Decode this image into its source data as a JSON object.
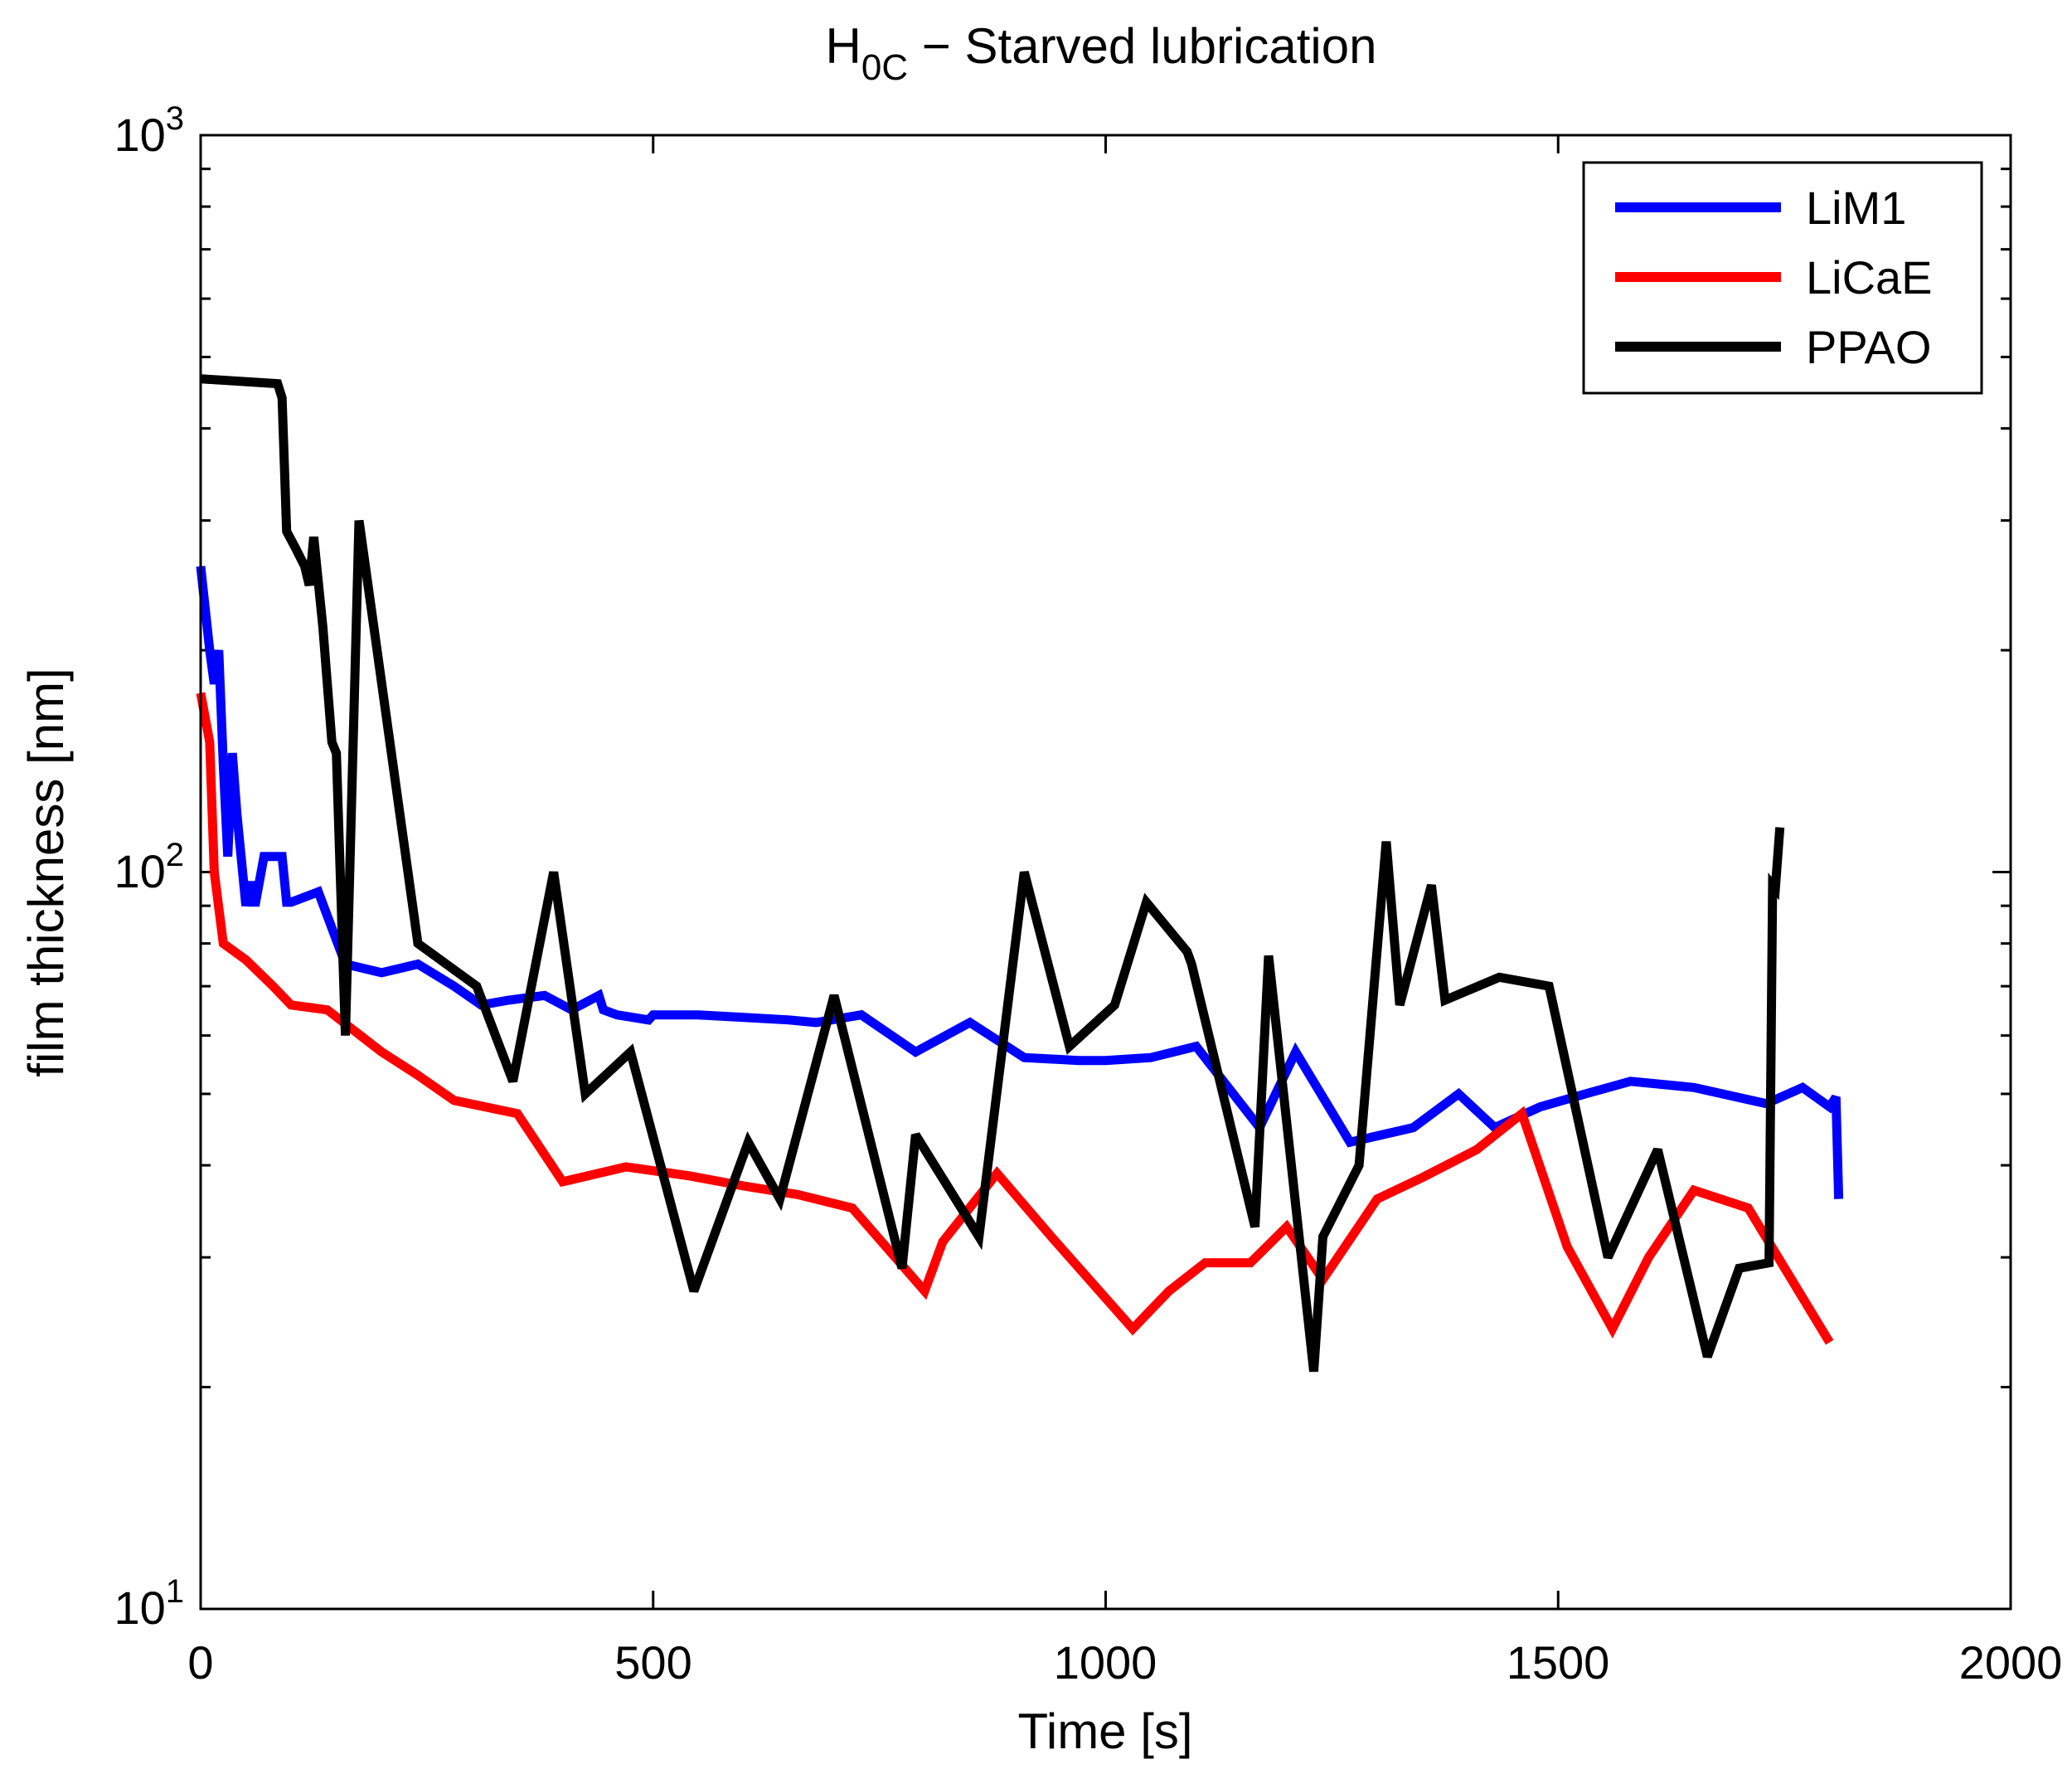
{
  "chart_data": {
    "type": "line",
    "title": {
      "main": "H",
      "subscript": "0C",
      "rest": " − Starved lubrication"
    },
    "xlabel": "Time [s]",
    "ylabel": "film thickness [nm]",
    "xlim": [
      0,
      2000
    ],
    "ylim": [
      10,
      1000
    ],
    "yscale": "log",
    "xticks": [
      0,
      500,
      1000,
      1500,
      2000
    ],
    "xtick_labels": [
      "0",
      "500",
      "1000",
      "1500",
      "2000"
    ],
    "yticks": [
      10,
      100,
      1000
    ],
    "ytick_labels": [
      {
        "base": "10",
        "exp": "1"
      },
      {
        "base": "10",
        "exp": "2"
      },
      {
        "base": "10",
        "exp": "3"
      }
    ],
    "legend_position": "top-right",
    "series": [
      {
        "name": "LiM1",
        "color": "#0000ff",
        "x": [
          0,
          10,
          15,
          20,
          25,
          30,
          35,
          40,
          50,
          55,
          60,
          70,
          80,
          90,
          95,
          100,
          130,
          160,
          200,
          240,
          280,
          310,
          340,
          380,
          410,
          440,
          445,
          460,
          495,
          500,
          550,
          600,
          650,
          680,
          730,
          790,
          850,
          910,
          970,
          1000,
          1050,
          1100,
          1170,
          1210,
          1270,
          1340,
          1390,
          1430,
          1480,
          1530,
          1580,
          1650,
          1730,
          1770,
          1800,
          1807,
          1810
        ],
        "y": [
          260,
          200,
          180,
          200,
          140,
          105,
          145,
          120,
          90,
          97,
          90,
          105,
          105,
          105,
          91,
          91,
          94,
          75,
          73,
          75,
          70,
          66,
          67,
          68,
          65,
          68,
          65,
          64,
          63,
          64,
          64,
          63.5,
          63,
          62.5,
          64,
          57,
          62.5,
          56,
          55.5,
          55.5,
          56,
          58,
          45,
          57,
          43,
          45,
          50,
          45,
          48,
          50,
          52,
          51,
          48.5,
          51,
          48,
          49.5,
          36
        ]
      },
      {
        "name": "LiCaE",
        "color": "#ff0000",
        "x": [
          0,
          10,
          15,
          25,
          50,
          80,
          100,
          140,
          200,
          240,
          280,
          350,
          400,
          470,
          540,
          600,
          660,
          720,
          800,
          820,
          880,
          940,
          1030,
          1070,
          1110,
          1160,
          1200,
          1240,
          1300,
          1350,
          1410,
          1460,
          1510,
          1560,
          1600,
          1650,
          1710,
          1800
        ],
        "y": [
          175,
          150,
          100,
          80,
          76,
          70,
          66,
          65,
          57,
          53,
          49,
          47,
          38,
          39.8,
          38.7,
          37.5,
          36.5,
          35,
          27,
          31.5,
          39,
          32,
          24,
          27,
          29.5,
          29.5,
          33,
          28,
          36,
          38.5,
          42,
          47,
          31,
          24,
          30,
          37,
          35,
          23
        ]
      },
      {
        "name": "PPAO",
        "color": "#000000",
        "x": [
          0,
          85,
          90,
          95,
          105,
          115,
          120,
          125,
          135,
          145,
          150,
          160,
          175,
          240,
          305,
          345,
          390,
          425,
          475,
          545,
          605,
          640,
          700,
          775,
          790,
          860,
          910,
          960,
          1010,
          1045,
          1090,
          1095,
          1165,
          1180,
          1230,
          1240,
          1280,
          1310,
          1325,
          1360,
          1375,
          1435,
          1490,
          1555,
          1610,
          1665,
          1700,
          1733,
          1737,
          1740,
          1745
        ],
        "y": [
          467,
          460,
          440,
          290,
          275,
          260,
          245,
          285,
          215,
          150,
          145,
          60,
          300,
          80,
          70,
          52,
          100,
          50,
          57,
          27,
          43,
          36,
          68,
          29,
          44,
          32,
          100,
          58,
          66,
          91,
          78,
          75,
          33,
          77,
          21,
          32,
          40,
          110,
          66,
          96,
          67,
          72,
          70,
          30,
          42,
          22,
          29,
          29.5,
          96,
          95,
          115
        ]
      }
    ]
  }
}
